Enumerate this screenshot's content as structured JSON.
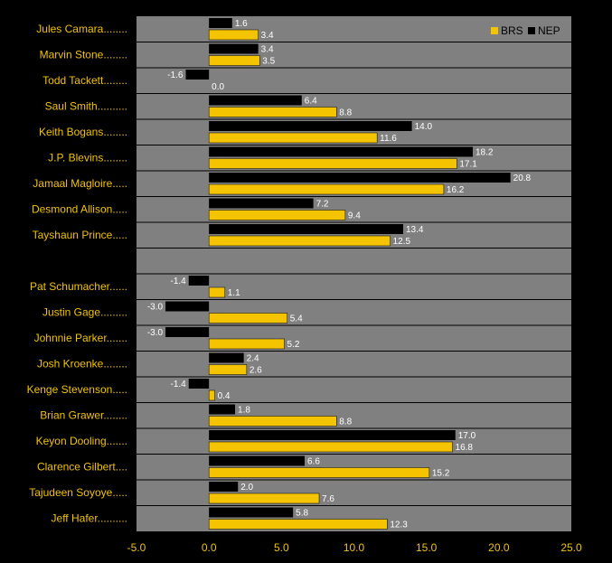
{
  "chart_data": {
    "type": "bar",
    "orientation": "horizontal",
    "title": "",
    "xlabel": "",
    "ylabel": "",
    "xlim": [
      -5,
      25
    ],
    "xticks": [
      "-5.0",
      "0.0",
      "5.0",
      "10.0",
      "15.0",
      "20.0",
      "25.0"
    ],
    "grid": "horizontal row separators",
    "legend_position": "top-right",
    "categories": [
      "Jules Camara........",
      "Marvin Stone........",
      "Todd Tackett........",
      "Saul Smith..........",
      "Keith Bogans........",
      "J.P. Blevins........",
      "Jamaal Magloire.....",
      "Desmond Allison.....",
      "Tayshaun Prince.....",
      "",
      "Pat Schumacher......",
      "Justin Gage.........",
      "Johnnie Parker.......",
      "Josh Kroenke........",
      "Kenge Stevenson.....",
      "Brian Grawer........",
      "Keyon Dooling.......",
      "Clarence Gilbert....",
      "Tajudeen Soyoye.....",
      "Jeff Hafer.........."
    ],
    "series": [
      {
        "name": "NEP",
        "color": "#000000",
        "values": [
          1.6,
          3.4,
          -1.6,
          6.4,
          14.0,
          18.2,
          20.8,
          7.2,
          13.4,
          null,
          -1.4,
          -3.0,
          -3.0,
          2.4,
          -1.4,
          1.8,
          17.0,
          6.6,
          2.0,
          5.8
        ],
        "labels": [
          "1.6",
          "3.4",
          "-1.6",
          "6.4",
          "14.0",
          "18.2",
          "20.8",
          "7.2",
          "13.4",
          "",
          "-1.4",
          "-3.0",
          "-3.0",
          "2.4",
          "-1.4",
          "1.8",
          "17.0",
          "6.6",
          "2.0",
          "5.8"
        ]
      },
      {
        "name": "BRS",
        "color": "#f5c400",
        "values": [
          3.4,
          3.5,
          0.0,
          8.8,
          11.6,
          17.1,
          16.2,
          9.4,
          12.5,
          null,
          1.1,
          5.4,
          5.2,
          2.6,
          0.4,
          8.8,
          16.8,
          15.2,
          7.6,
          12.3
        ],
        "labels": [
          "3.4",
          "3.5",
          "0.0",
          "8.8",
          "11.6",
          "17.1",
          "16.2",
          "9.4",
          "12.5",
          "",
          "1.1",
          "5.4",
          "5.2",
          "2.6",
          "0.4",
          "8.8",
          "16.8",
          "15.2",
          "7.6",
          "12.3"
        ]
      }
    ],
    "legend": [
      "BRS",
      "NEP"
    ]
  }
}
